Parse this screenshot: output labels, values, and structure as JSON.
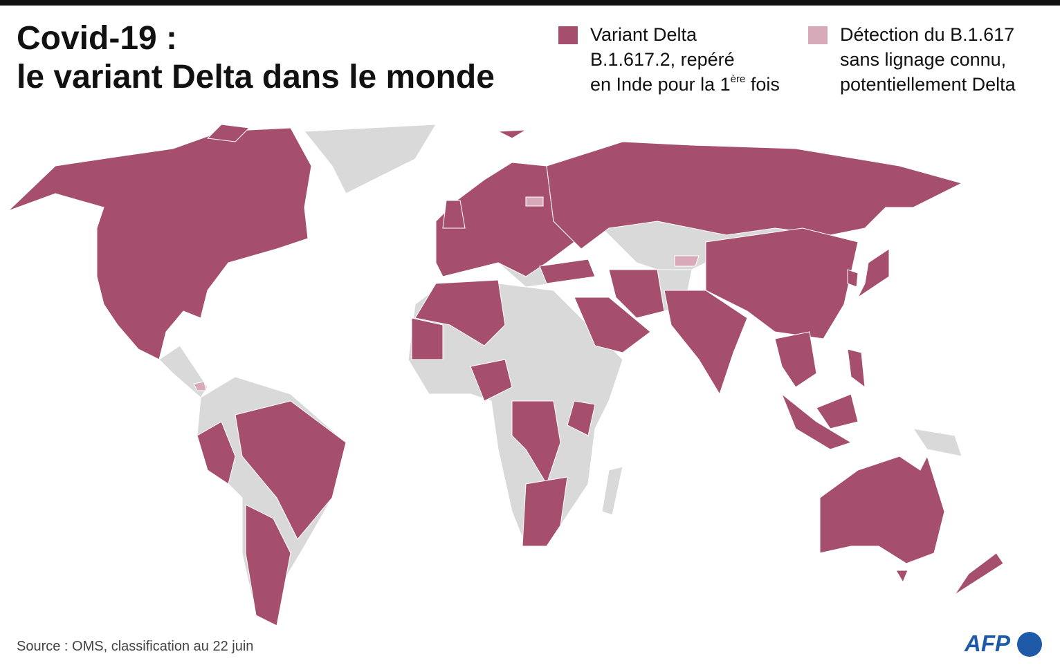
{
  "header": {
    "title": [
      "Covid-19 :",
      "le variant Delta dans le monde"
    ]
  },
  "legend": [
    {
      "color": "#a64e6d",
      "label": [
        "Variant Delta",
        "B.1.617.2, repéré",
        "en Inde pour la 1"
      ],
      "superscript": "ère",
      "suffix": " fois"
    },
    {
      "color": "#d8a9b9",
      "label": [
        "Détection du B.1.617",
        "sans lignage connu,",
        "potentiellement Delta"
      ]
    }
  ],
  "source": "Source : OMS, classification au 22 juin",
  "logo": "AFP"
}
